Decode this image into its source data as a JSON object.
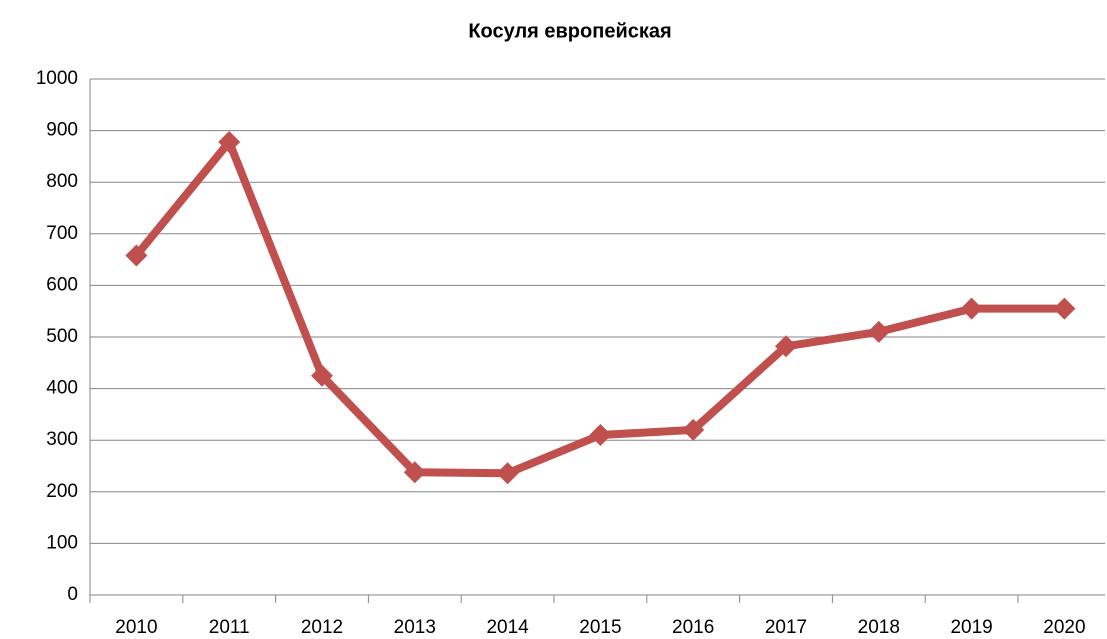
{
  "chart_data": {
    "type": "line",
    "title": "Косуля европейская",
    "categories": [
      "2010",
      "2011",
      "2012",
      "2013",
      "2014",
      "2015",
      "2016",
      "2017",
      "2018",
      "2019",
      "2020"
    ],
    "series": [
      {
        "name": "Косуля европейская",
        "color": "#c0504d",
        "values": [
          658,
          878,
          425,
          238,
          236,
          310,
          320,
          482,
          510,
          555,
          555
        ]
      }
    ],
    "ylim": [
      0,
      1000
    ],
    "yticks": [
      0,
      100,
      200,
      300,
      400,
      500,
      600,
      700,
      800,
      900,
      1000
    ],
    "grid": true
  }
}
